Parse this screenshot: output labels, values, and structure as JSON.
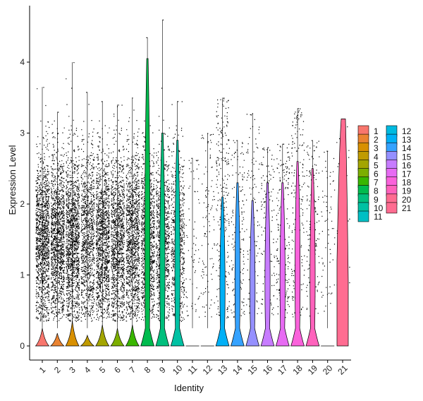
{
  "chart_data": {
    "type": "violin",
    "xlabel": "Identity",
    "ylabel": "Expression Level",
    "ylim": [
      -0.2,
      4.75
    ],
    "yticks": [
      0,
      1,
      2,
      3,
      4
    ],
    "grid": false,
    "legend_placement": "right",
    "categories": [
      "1",
      "2",
      "3",
      "4",
      "5",
      "6",
      "7",
      "8",
      "9",
      "10",
      "11",
      "12",
      "13",
      "14",
      "15",
      "16",
      "17",
      "18",
      "19",
      "20",
      "21"
    ],
    "colors": [
      "#F8766D",
      "#EA8331",
      "#D89000",
      "#C09B00",
      "#A3A500",
      "#7CAE00",
      "#39B600",
      "#00BB4E",
      "#00BF7D",
      "#00C1A3",
      "#00BFC4",
      "#00BAE0",
      "#00B0F6",
      "#35A2FF",
      "#9590FF",
      "#C77CFF",
      "#E76BF3",
      "#FA62DB",
      "#FF62BC",
      "#FF6C91",
      "#FF6C91"
    ],
    "violin_max": [
      0.25,
      0.18,
      0.35,
      0.15,
      0.3,
      0.25,
      0.3,
      4.05,
      3.0,
      2.9,
      0.0,
      0.0,
      2.1,
      2.3,
      2.05,
      2.3,
      2.3,
      2.6,
      2.5,
      0.0,
      3.2
    ],
    "point_max": [
      3.65,
      3.3,
      4.0,
      3.58,
      3.45,
      3.4,
      3.5,
      4.35,
      4.6,
      3.45,
      2.65,
      3.0,
      3.5,
      2.9,
      3.28,
      2.8,
      2.85,
      3.35,
      2.9,
      2.75,
      3.2
    ],
    "point_density": [
      1.0,
      1.0,
      1.0,
      0.75,
      0.95,
      0.9,
      0.9,
      0.75,
      0.65,
      0.5,
      0.05,
      0.08,
      0.18,
      0.12,
      0.08,
      0.1,
      0.15,
      0.15,
      0.12,
      0.05,
      0.03
    ]
  }
}
